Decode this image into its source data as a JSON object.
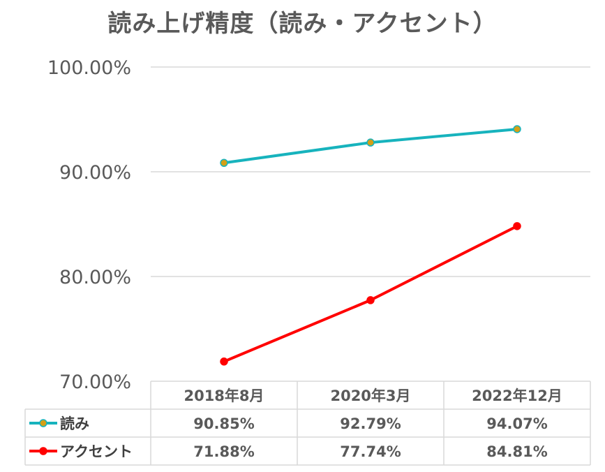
{
  "chart_data": {
    "type": "line",
    "title": "読み上げ精度（読み・アクセント）",
    "categories": [
      "2018年8月",
      "2020年3月",
      "2022年12月"
    ],
    "ylim": [
      0.7,
      1.0
    ],
    "yticks": [
      "100.00%",
      "90.00%",
      "80.00%",
      "70.00%"
    ],
    "ytick_values": [
      1.0,
      0.9,
      0.8,
      0.7
    ],
    "grid": true,
    "legend": "data-table",
    "series": [
      {
        "name": "読み",
        "color": "#17b3bd",
        "marker_fill": "#d4a017",
        "values": [
          0.9085,
          0.9279,
          0.9407
        ],
        "labels": [
          "90.85%",
          "92.79%",
          "94.07%"
        ]
      },
      {
        "name": "アクセント",
        "color": "#ff0000",
        "marker_fill": "#ff0000",
        "values": [
          0.7188,
          0.7774,
          0.8481
        ],
        "labels": [
          "71.88%",
          "77.74%",
          "84.81%"
        ]
      }
    ]
  }
}
